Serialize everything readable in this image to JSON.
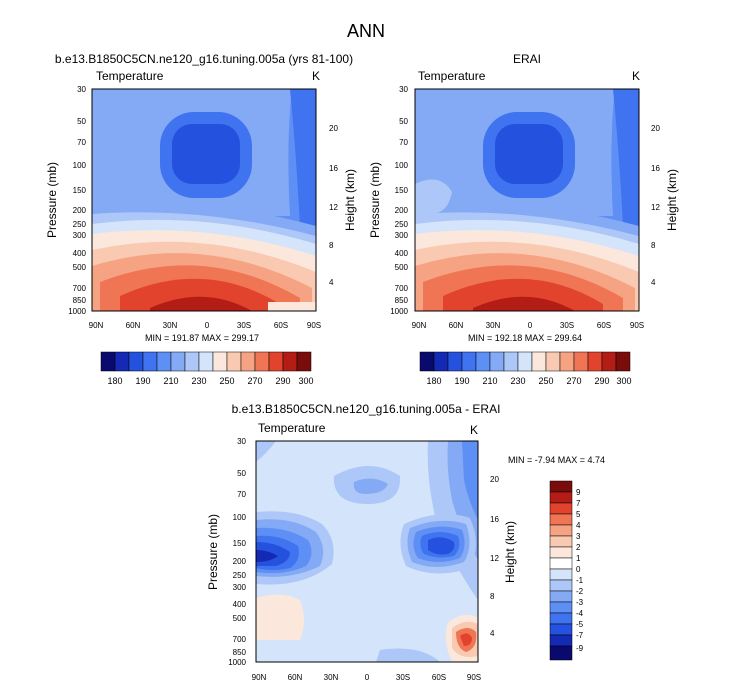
{
  "figure": {
    "title": "ANN"
  },
  "chart_data": [
    {
      "type": "heatmap",
      "title": "b.e13.B1850C5CN.ne120_g16.tuning.005a (yrs 81-100)",
      "subtitle_left": "Temperature",
      "subtitle_right": "K",
      "ylabel": "Pressure (mb)",
      "ylabel_right": "Height (km)",
      "x_ticks": [
        "90N",
        "60N",
        "30N",
        "0",
        "30S",
        "60S",
        "90S"
      ],
      "y_ticks": [
        "30",
        "50",
        "70",
        "100",
        "150",
        "200",
        "250",
        "300",
        "400",
        "500",
        "700",
        "850",
        "1000"
      ],
      "height_ticks": [
        "20",
        "16",
        "12",
        "8",
        "4"
      ],
      "stats": "MIN = 191.87  MAX = 299.17",
      "y_scale": "log",
      "legend_placement": "bottom",
      "colorbar_labels": [
        "180",
        "190",
        "210",
        "230",
        "250",
        "270",
        "290",
        "300"
      ],
      "colorbar_levels": 14,
      "colors": [
        "#0a0a6e",
        "#1429b4",
        "#2452de",
        "#3f73ef",
        "#5e8ff5",
        "#84aaf6",
        "#adc8f8",
        "#d4e4fa",
        "#fbe7dc",
        "#f9c9b1",
        "#f5a382",
        "#ef7554",
        "#e1432d",
        "#b31d15",
        "#7a0c0c"
      ]
    },
    {
      "type": "heatmap",
      "title": "ERAI",
      "subtitle_left": "Temperature",
      "subtitle_right": "K",
      "ylabel": "Pressure (mb)",
      "ylabel_right": "Height (km)",
      "x_ticks": [
        "90N",
        "60N",
        "30N",
        "0",
        "30S",
        "60S",
        "90S"
      ],
      "y_ticks": [
        "30",
        "50",
        "70",
        "100",
        "150",
        "200",
        "250",
        "300",
        "400",
        "500",
        "700",
        "850",
        "1000"
      ],
      "height_ticks": [
        "20",
        "16",
        "12",
        "8",
        "4"
      ],
      "stats": "MIN = 192.18  MAX = 299.64",
      "y_scale": "log",
      "legend_placement": "bottom",
      "colorbar_labels": [
        "180",
        "190",
        "210",
        "230",
        "250",
        "270",
        "290",
        "300"
      ]
    },
    {
      "type": "heatmap",
      "title": "b.e13.B1850C5CN.ne120_g16.tuning.005a - ERAI",
      "subtitle_left": "Temperature",
      "subtitle_right": "K",
      "ylabel": "Pressure (mb)",
      "ylabel_right": "Height (km)",
      "x_ticks": [
        "90N",
        "60N",
        "30N",
        "0",
        "30S",
        "60S",
        "90S"
      ],
      "y_ticks": [
        "30",
        "50",
        "70",
        "100",
        "150",
        "200",
        "250",
        "300",
        "400",
        "500",
        "700",
        "850",
        "1000"
      ],
      "height_ticks": [
        "20",
        "16",
        "12",
        "8",
        "4"
      ],
      "stats": "MIN = -7.94  MAX =  4.74",
      "y_scale": "log",
      "legend_placement": "right",
      "colorbar_labels": [
        "9",
        "7",
        "5",
        "4",
        "3",
        "2",
        "1",
        "0",
        "-1",
        "-2",
        "-3",
        "-4",
        "-5",
        "-7",
        "-9"
      ],
      "colors": [
        "#7a0c0c",
        "#b31d15",
        "#e1432d",
        "#ef7554",
        "#f5a382",
        "#f9c9b1",
        "#fbe7dc",
        "#ffffff",
        "#d4e4fa",
        "#adc8f8",
        "#84aaf6",
        "#5e8ff5",
        "#3f73ef",
        "#2452de",
        "#1429b4",
        "#0a0a6e"
      ]
    }
  ]
}
